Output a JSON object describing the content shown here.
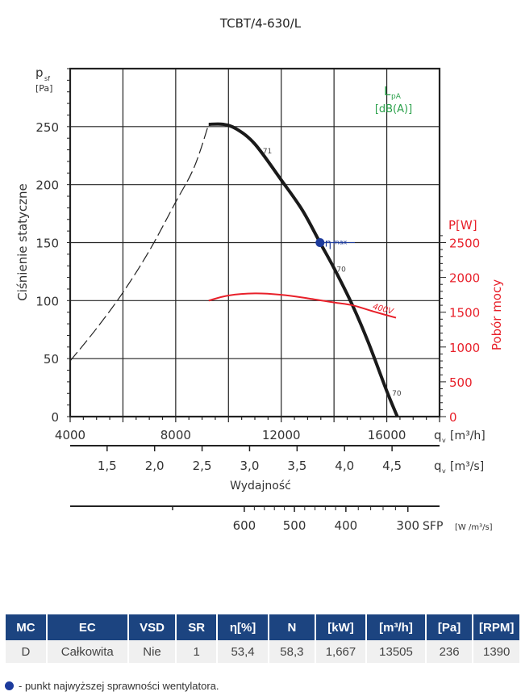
{
  "chart_data": {
    "type": "line",
    "title": "TCBT/4-630/L",
    "ylabel": "Ciśnienie statyczne",
    "yunit_sym": "p",
    "yunit_sub": "sf",
    "yunit": "[Pa]",
    "y2label": "Pobór mocy",
    "y2unit": "P[W]",
    "xlabel": "Wydajność",
    "x_unit_sym": "q",
    "x_unit_sub": "v",
    "x_unit_h": "[m³/h]",
    "x_unit_s": "[m³/s]",
    "sfp_label": "SFP",
    "sfp_unit": "[W /m³/s]",
    "lpa_label": "L",
    "lpa_sub": "pA",
    "lpa_unit": "[dB(A)]",
    "xlim": [
      4000,
      18000
    ],
    "ylim": [
      0,
      300
    ],
    "y2lim": [
      0,
      5000
    ],
    "x_ticks": [
      "4000",
      "8000",
      "12000",
      "16000"
    ],
    "x_tick_values": [
      4000,
      8000,
      12000,
      16000
    ],
    "y_ticks": [
      "0",
      "50",
      "100",
      "150",
      "200",
      "250"
    ],
    "y_tick_values": [
      0,
      50,
      100,
      150,
      200,
      250
    ],
    "y2_ticks": [
      "0",
      "500",
      "1000",
      "1500",
      "2000",
      "2500"
    ],
    "y2_tick_values": [
      0,
      500,
      1000,
      1500,
      2000,
      2500
    ],
    "m3s_ticks": [
      "1,5",
      "2,0",
      "2,5",
      "3,0",
      "3,5",
      "4,0",
      "4,5"
    ],
    "m3s_tick_values": [
      1.5,
      2.0,
      2.5,
      3.0,
      3.5,
      4.0,
      4.5
    ],
    "sfp_ticks": [
      "600",
      "500",
      "400",
      "300"
    ],
    "sfp_tick_flow": [
      10600,
      12500,
      14450,
      16800
    ],
    "series": [
      {
        "name": "unstable",
        "style": "dashed",
        "color": "#222222",
        "x": [
          4000,
          5000,
          6000,
          7000,
          8000,
          8700,
          9250
        ],
        "y": [
          48,
          76,
          107,
          143,
          185,
          215,
          252
        ]
      },
      {
        "name": "fan curve",
        "style": "solid",
        "color": "#1a1a1a",
        "x": [
          9250,
          9800,
          10300,
          11000,
          12000,
          12800,
          13470,
          14000,
          14700,
          15300,
          16000,
          16400
        ],
        "y": [
          252,
          252,
          248,
          235,
          204,
          178,
          150,
          128,
          96,
          64,
          22,
          0
        ]
      },
      {
        "name": "400V",
        "style": "solid",
        "color": "#e8202a",
        "axis": "y2",
        "x": [
          9250,
          10000,
          11000,
          12000,
          13000,
          14000,
          14700,
          15500,
          16350
        ],
        "y": [
          1667,
          1740,
          1770,
          1750,
          1700,
          1640,
          1600,
          1510,
          1420
        ]
      }
    ],
    "eta_max": {
      "label": "η",
      "sub": "max",
      "x": 13470,
      "y": 150
    },
    "annotations": [
      {
        "text": "71",
        "x": 11300,
        "y": 227
      },
      {
        "text": "70",
        "x": 14100,
        "y": 125
      },
      {
        "text": "70",
        "x": 16200,
        "y": 18
      },
      {
        "text": "400V",
        "x": 15450,
        "y": 93
      }
    ]
  },
  "table": {
    "headers": [
      "MC",
      "EC",
      "VSD",
      "SR",
      "η[%]",
      "N",
      "[kW]",
      "[m³/h]",
      "[Pa]",
      "[RPM]"
    ],
    "row": [
      "D",
      "Całkowita",
      "Nie",
      "1",
      "53,4",
      "58,3",
      "1,667",
      "13505",
      "236",
      "1390"
    ]
  },
  "legend": "- punkt najwyższej sprawności wentylatora.",
  "colors": {
    "header": "#1c4480",
    "power": "#e8202a",
    "lpa": "#2aa04a",
    "eta": "#1c3a9c"
  }
}
